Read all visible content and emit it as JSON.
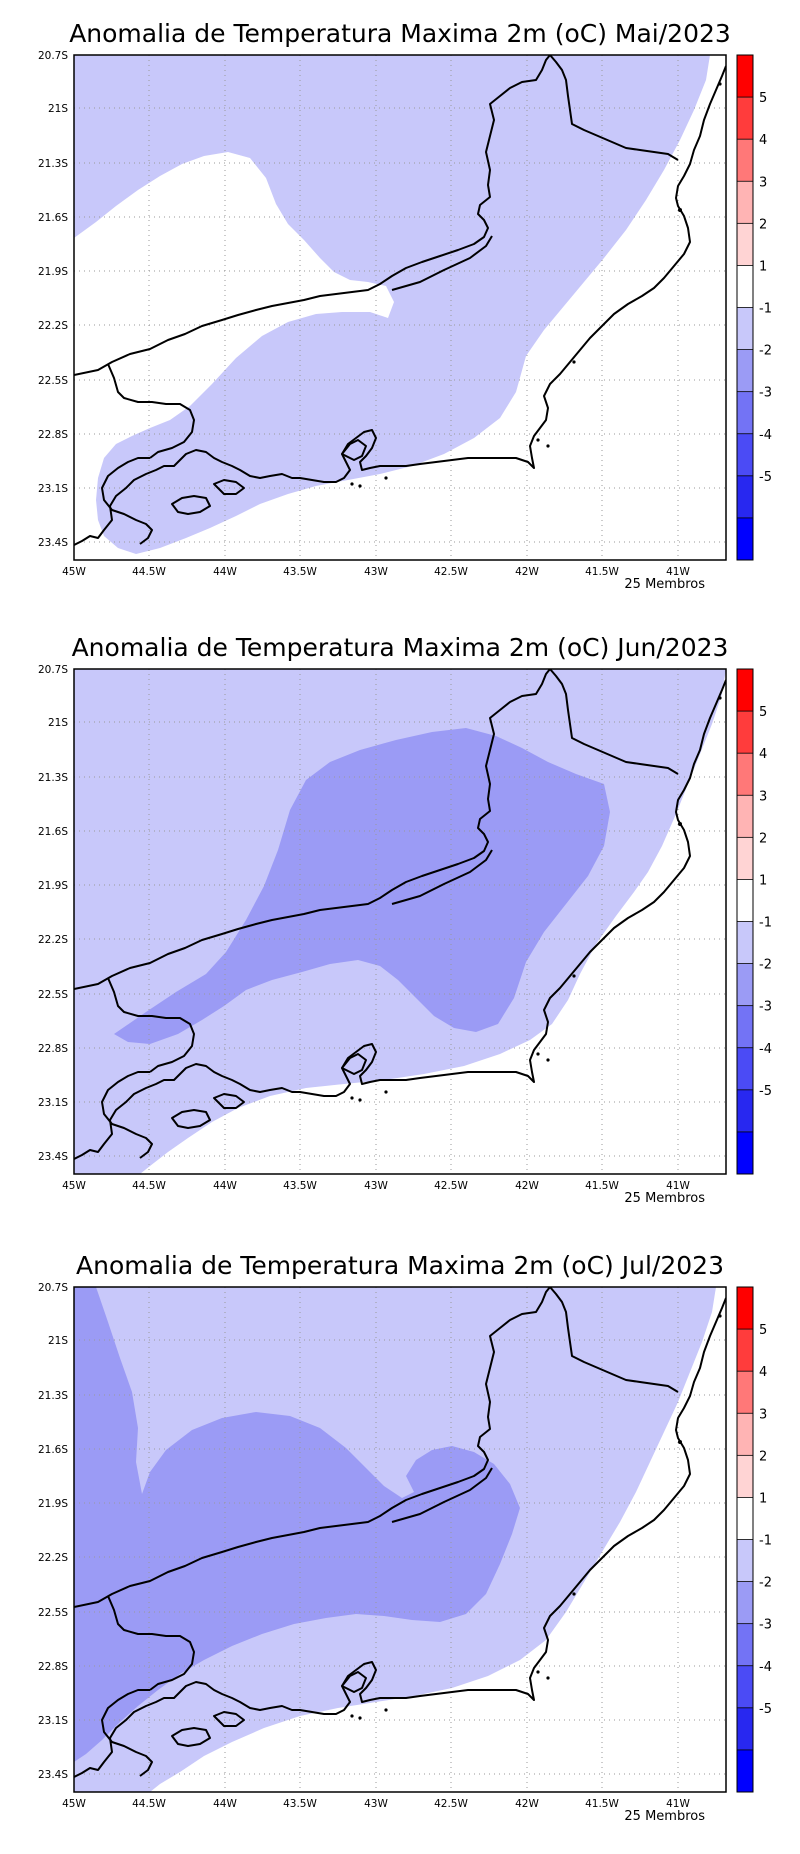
{
  "panels": [
    {
      "title": "Anomalia de Temperatura Maxima 2m (oC) Mai/2023",
      "members": "25 Membros"
    },
    {
      "title": "Anomalia de Temperatura Maxima 2m (oC) Jun/2023",
      "members": "25 Membros"
    },
    {
      "title": "Anomalia de Temperatura Maxima 2m (oC) Jul/2023",
      "members": "25 Membros"
    }
  ],
  "lat_labels": [
    "20.7S",
    "21S",
    "21.3S",
    "21.6S",
    "21.9S",
    "22.2S",
    "22.5S",
    "22.8S",
    "23.1S",
    "23.4S"
  ],
  "lon_labels": [
    "45W",
    "44.5W",
    "44W",
    "43.5W",
    "43W",
    "42.5W",
    "42W",
    "41.5W",
    "41W"
  ],
  "colorbar": {
    "labels": [
      "5",
      "4",
      "3",
      "2",
      "1",
      "-1",
      "-2",
      "-3",
      "-4",
      "-5"
    ],
    "colors": [
      "#ff0000",
      "#ff3c3c",
      "#ff7878",
      "#ffb4b4",
      "#ffd4d4",
      "#ffffff",
      "#c8c8fa",
      "#9b9bf5",
      "#7373f5",
      "#4b4bf5",
      "#2828f0",
      "#0000ff"
    ]
  },
  "fill_colors": {
    "c12": "#c8c8fa",
    "c23": "#9b9bf5"
  }
}
